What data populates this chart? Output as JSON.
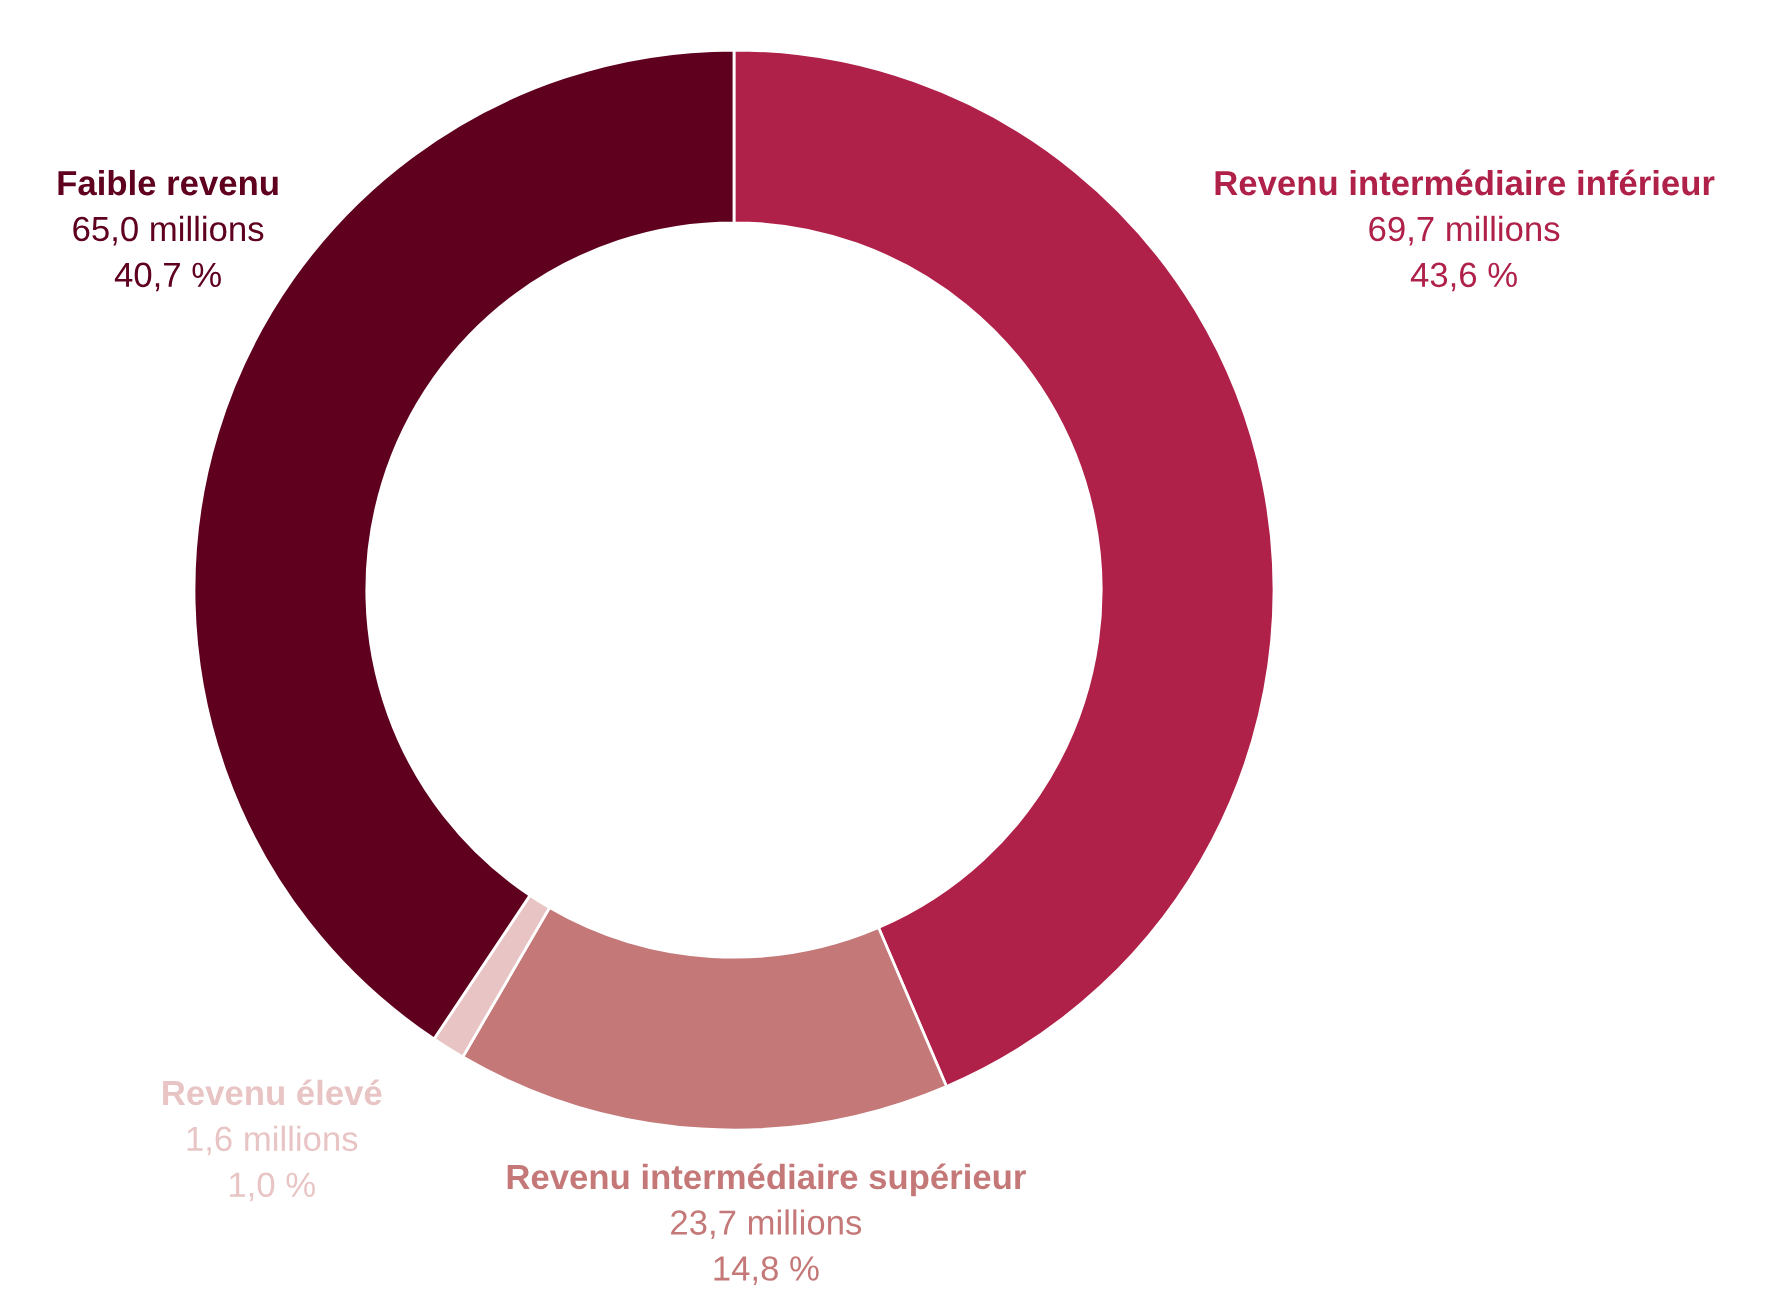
{
  "chart_data": {
    "type": "donut",
    "categories": [
      "Revenu intermédiaire inférieur",
      "Revenu intermédiaire supérieur",
      "Revenu élevé",
      "Faible revenu"
    ],
    "values": [
      69.7,
      23.7,
      1.6,
      65.0
    ],
    "colors": [
      "#b0214a",
      "#c47878",
      "#e8c4c4",
      "#5e001e"
    ],
    "value_labels": [
      "69,7 millions",
      "23,7 millions",
      "1,6 millions",
      "65,0 millions"
    ],
    "annotations": [
      "43,6 %",
      "14,8 %",
      "1,0 %",
      "40,7 %"
    ],
    "legend": false
  }
}
